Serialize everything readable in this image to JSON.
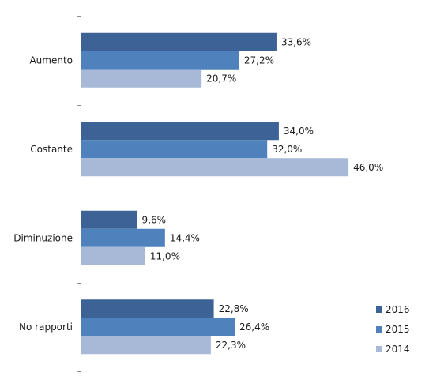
{
  "chart_data": {
    "type": "bar",
    "orientation": "horizontal",
    "categories": [
      "Aumento",
      "Costante",
      "Diminuzione",
      "No rapporti"
    ],
    "series": [
      {
        "name": "2016",
        "color": "#3d6295",
        "values": [
          33.6,
          34.0,
          9.6,
          22.8
        ],
        "labels": [
          "33,6%",
          "34,0%",
          "9,6%",
          "22,8%"
        ]
      },
      {
        "name": "2015",
        "color": "#4f81bd",
        "values": [
          27.2,
          32.0,
          14.4,
          26.4
        ],
        "labels": [
          "27,2%",
          "32,0%",
          "14,4%",
          "26,4%"
        ]
      },
      {
        "name": "2014",
        "color": "#a8b9d8",
        "values": [
          20.7,
          46.0,
          11.0,
          22.3
        ],
        "labels": [
          "20,7%",
          "46,0%",
          "11,0%",
          "22,3%"
        ]
      }
    ],
    "value_unit": "%",
    "xlim": [
      0,
      60
    ],
    "grid": false,
    "legend": "right"
  }
}
